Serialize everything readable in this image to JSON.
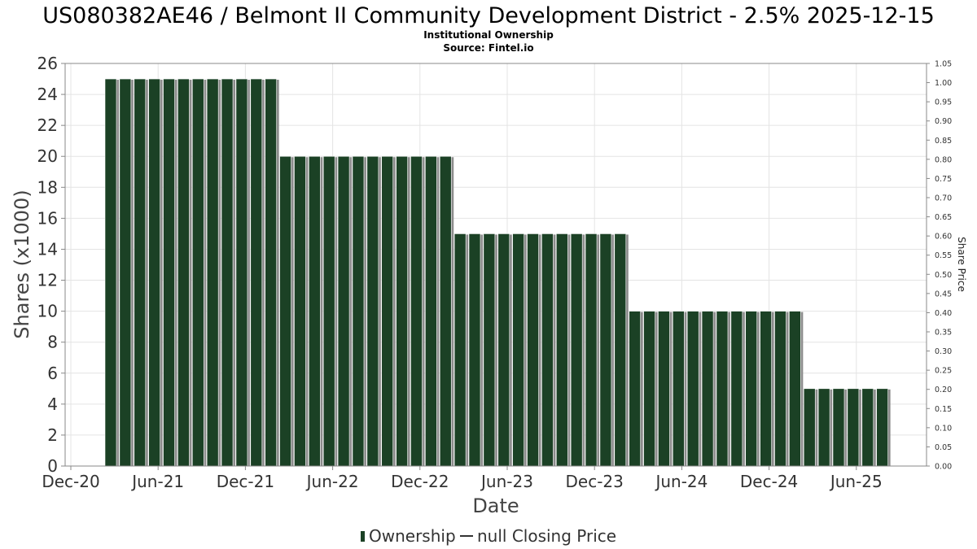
{
  "chart_data": {
    "type": "bar",
    "title": "US080382AE46 / Belmont II Community Development District - 2.5% 2025-12-15",
    "subtitle": "Institutional Ownership",
    "source": "Source: Fintel.io",
    "xlabel": "Date",
    "ylabel": "Shares (x1000)",
    "ylabel_right": "Share Price",
    "x_ticks": [
      "Dec-20",
      "Jun-21",
      "Dec-21",
      "Jun-22",
      "Dec-22",
      "Jun-23",
      "Dec-23",
      "Jun-24",
      "Dec-24",
      "Jun-25"
    ],
    "y_ticks": [
      "0",
      "2",
      "4",
      "6",
      "8",
      "10",
      "12",
      "14",
      "16",
      "18",
      "20",
      "22",
      "24",
      "26"
    ],
    "y_ticks_right": [
      "0.00",
      "0.05",
      "0.10",
      "0.15",
      "0.20",
      "0.25",
      "0.30",
      "0.35",
      "0.40",
      "0.45",
      "0.50",
      "0.55",
      "0.60",
      "0.65",
      "0.70",
      "0.75",
      "0.80",
      "0.85",
      "0.90",
      "0.95",
      "1.00",
      "1.05"
    ],
    "ylim": [
      0,
      26
    ],
    "ylim_right": [
      0,
      1.05
    ],
    "grid": true,
    "legend_position": "bottom-center",
    "series": [
      {
        "name": "Ownership",
        "color": "#1b4125",
        "values": [
          25,
          25,
          25,
          25,
          25,
          25,
          25,
          25,
          25,
          25,
          25,
          25,
          20,
          20,
          20,
          20,
          20,
          20,
          20,
          20,
          20,
          20,
          20,
          20,
          15,
          15,
          15,
          15,
          15,
          15,
          15,
          15,
          15,
          15,
          15,
          15,
          10,
          10,
          10,
          10,
          10,
          10,
          10,
          10,
          10,
          10,
          10,
          10,
          5,
          5,
          5,
          5,
          5,
          5
        ]
      },
      {
        "name": "null Closing Price",
        "color": "#333333",
        "values": []
      }
    ]
  }
}
